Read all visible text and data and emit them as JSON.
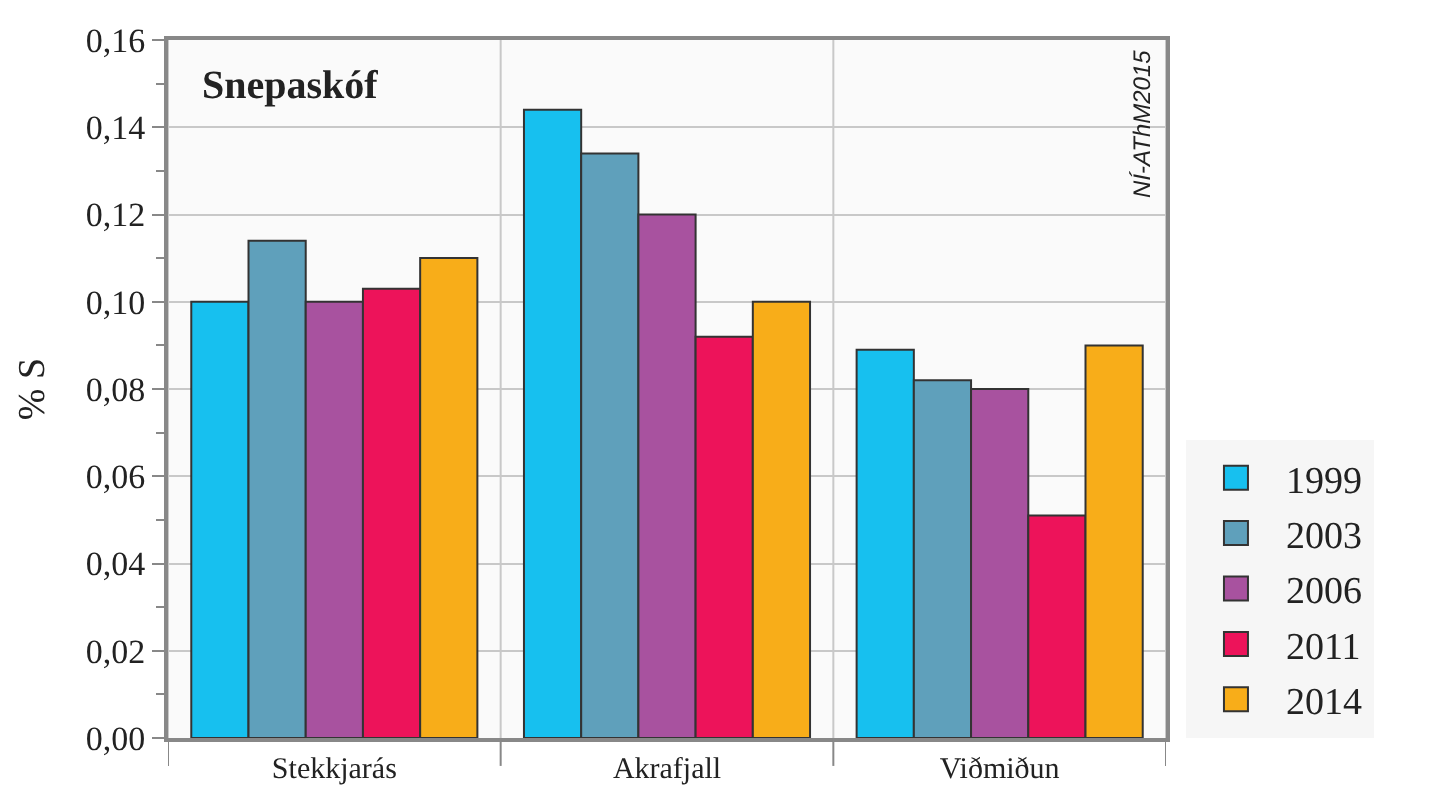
{
  "chart_data": {
    "type": "bar",
    "title": "Snepaskóf",
    "ylabel": "% S",
    "categories": [
      "Stekkjarás",
      "Akrafjall",
      "Viðmiðun"
    ],
    "series": [
      {
        "name": "1999",
        "color": "#17c0ef",
        "values": [
          0.1,
          0.144,
          0.089
        ]
      },
      {
        "name": "2003",
        "color": "#5fa0bb",
        "values": [
          0.114,
          0.134,
          0.082
        ]
      },
      {
        "name": "2006",
        "color": "#a8529f",
        "values": [
          0.1,
          0.12,
          0.08
        ]
      },
      {
        "name": "2011",
        "color": "#ed135a",
        "values": [
          0.103,
          0.092,
          0.051
        ]
      },
      {
        "name": "2014",
        "color": "#f8ad19",
        "values": [
          0.11,
          0.1,
          0.09
        ]
      }
    ],
    "ylim": [
      0,
      0.16
    ],
    "yticks": [
      {
        "value": 0,
        "label": "0,00"
      },
      {
        "value": 0.02,
        "label": "0,02"
      },
      {
        "value": 0.04,
        "label": "0,04"
      },
      {
        "value": 0.06,
        "label": "0,06"
      },
      {
        "value": 0.08,
        "label": "0,08"
      },
      {
        "value": 0.1,
        "label": "0,10"
      },
      {
        "value": 0.12,
        "label": "0,12"
      },
      {
        "value": 0.14,
        "label": "0,14"
      },
      {
        "value": 0.16,
        "label": "0,16"
      }
    ],
    "grid": true,
    "legend": "bottom right",
    "annotations": [
      "NÍ-AThM2015"
    ]
  }
}
